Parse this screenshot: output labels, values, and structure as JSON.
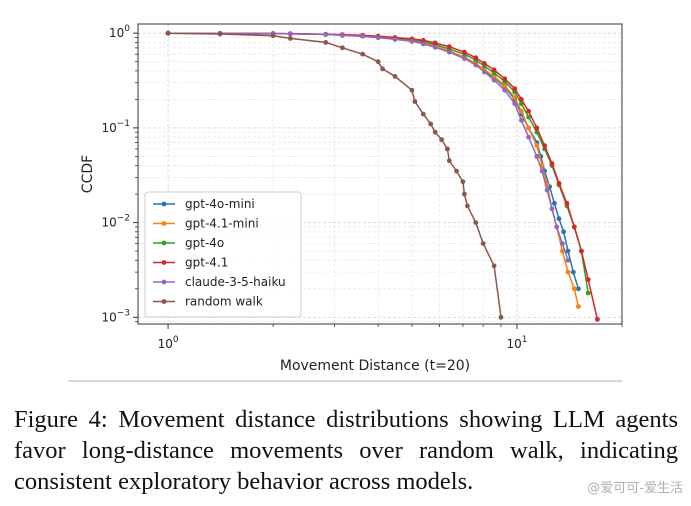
{
  "chart_data": {
    "type": "line",
    "xlabel": "Movement Distance (t=20)",
    "ylabel": "CCDF",
    "xscale": "log",
    "yscale": "log",
    "xlim": [
      0.82,
      20
    ],
    "ylim": [
      0.00085,
      1.25
    ],
    "x_ticks": [
      {
        "value": 1,
        "label": "10^0"
      },
      {
        "value": 10,
        "label": "10^1"
      }
    ],
    "y_ticks": [
      {
        "value": 1,
        "label": "10^0"
      },
      {
        "value": 0.1,
        "label": "10^-1"
      },
      {
        "value": 0.01,
        "label": "10^-2"
      },
      {
        "value": 0.001,
        "label": "10^-3"
      }
    ],
    "grid": true,
    "legend_position": "lower-left",
    "series": [
      {
        "name": "gpt-4o-mini",
        "color": "#1f77b4",
        "x": [
          1,
          1.41,
          2,
          2.24,
          2.83,
          3.16,
          3.61,
          4,
          4.47,
          5,
          5.39,
          5.83,
          6.4,
          7.07,
          7.62,
          8.06,
          8.6,
          9.22,
          9.85,
          10.3,
          10.8,
          11.4,
          11.7,
          12.0,
          12.4,
          12.8,
          13.2,
          13.6,
          14.0,
          14.5,
          15.0
        ],
        "y": [
          1,
          0.995,
          0.99,
          0.985,
          0.97,
          0.95,
          0.93,
          0.9,
          0.87,
          0.82,
          0.78,
          0.72,
          0.64,
          0.55,
          0.47,
          0.4,
          0.34,
          0.27,
          0.2,
          0.14,
          0.1,
          0.07,
          0.05,
          0.035,
          0.024,
          0.016,
          0.011,
          0.008,
          0.005,
          0.003,
          0.002
        ]
      },
      {
        "name": "gpt-4.1-mini",
        "color": "#ff7f0e",
        "x": [
          1,
          1.41,
          2,
          2.24,
          2.83,
          3.16,
          3.61,
          4,
          4.47,
          5,
          5.39,
          5.83,
          6.4,
          7.07,
          7.62,
          8.06,
          8.6,
          9.22,
          9.85,
          10.3,
          10.8,
          11.4,
          11.8,
          12.2,
          12.6,
          13.0,
          13.5,
          14.0,
          14.6,
          15.0
        ],
        "y": [
          1,
          0.995,
          0.99,
          0.985,
          0.97,
          0.95,
          0.93,
          0.9,
          0.87,
          0.83,
          0.79,
          0.73,
          0.65,
          0.56,
          0.48,
          0.41,
          0.35,
          0.28,
          0.21,
          0.15,
          0.1,
          0.065,
          0.04,
          0.025,
          0.014,
          0.009,
          0.005,
          0.003,
          0.002,
          0.0013
        ]
      },
      {
        "name": "gpt-4o",
        "color": "#2ca02c",
        "x": [
          1,
          1.41,
          2,
          2.24,
          2.83,
          3.16,
          3.61,
          4,
          4.47,
          5,
          5.39,
          5.83,
          6.4,
          7.07,
          7.62,
          8.06,
          8.6,
          9.22,
          9.85,
          10.3,
          10.8,
          11.4,
          12.0,
          12.6,
          13.2,
          13.9,
          14.6,
          15.3,
          16.0
        ],
        "y": [
          1,
          0.995,
          0.99,
          0.985,
          0.97,
          0.96,
          0.94,
          0.92,
          0.89,
          0.85,
          0.81,
          0.76,
          0.68,
          0.6,
          0.52,
          0.45,
          0.38,
          0.31,
          0.24,
          0.18,
          0.13,
          0.09,
          0.06,
          0.04,
          0.025,
          0.015,
          0.009,
          0.005,
          0.0018
        ]
      },
      {
        "name": "gpt-4.1",
        "color": "#d62728",
        "x": [
          1,
          1.41,
          2,
          2.24,
          2.83,
          3.16,
          3.61,
          4,
          4.47,
          5,
          5.39,
          5.83,
          6.4,
          7.07,
          7.62,
          8.06,
          8.6,
          9.22,
          9.85,
          10.3,
          10.8,
          11.4,
          12.0,
          12.6,
          13.2,
          13.9,
          14.6,
          15.3,
          16.0,
          17.0
        ],
        "y": [
          1,
          0.995,
          0.99,
          0.985,
          0.975,
          0.965,
          0.95,
          0.93,
          0.9,
          0.87,
          0.84,
          0.79,
          0.72,
          0.63,
          0.55,
          0.48,
          0.41,
          0.33,
          0.26,
          0.2,
          0.15,
          0.1,
          0.065,
          0.042,
          0.026,
          0.016,
          0.009,
          0.005,
          0.0025,
          0.00095
        ]
      },
      {
        "name": "claude-3-5-haiku",
        "color": "#9467bd",
        "x": [
          1,
          1.41,
          2,
          2.24,
          2.83,
          3.16,
          3.61,
          4,
          4.47,
          5,
          5.39,
          5.83,
          6.4,
          7.07,
          7.62,
          8.06,
          8.6,
          9.22,
          9.85,
          10.3,
          10.8,
          11.4,
          11.8,
          12.2,
          12.6,
          13.0,
          13.5,
          14.0
        ],
        "y": [
          1,
          0.995,
          0.99,
          0.985,
          0.97,
          0.95,
          0.93,
          0.9,
          0.86,
          0.82,
          0.77,
          0.71,
          0.63,
          0.54,
          0.46,
          0.39,
          0.32,
          0.25,
          0.18,
          0.12,
          0.08,
          0.05,
          0.035,
          0.022,
          0.014,
          0.009,
          0.006,
          0.004
        ]
      },
      {
        "name": "random walk",
        "color": "#8c564b",
        "x": [
          1,
          1.41,
          2,
          2.24,
          2.83,
          3.16,
          3.61,
          4,
          4.12,
          4.47,
          5,
          5.1,
          5.39,
          5.66,
          5.83,
          6.08,
          6.32,
          6.4,
          6.71,
          7.0,
          7.07,
          7.21,
          7.62,
          8.0,
          8.6,
          9.0
        ],
        "y": [
          1,
          0.98,
          0.94,
          0.88,
          0.8,
          0.7,
          0.6,
          0.5,
          0.42,
          0.35,
          0.25,
          0.19,
          0.14,
          0.11,
          0.09,
          0.075,
          0.06,
          0.045,
          0.035,
          0.027,
          0.02,
          0.015,
          0.01,
          0.006,
          0.0035,
          0.001
        ]
      }
    ]
  },
  "caption": "Figure 4: Movement distance distributions showing LLM agents favor long-distance movements over random walk, indicating consistent exploratory behavior across models.",
  "watermark": "@爱可可-爱生活"
}
